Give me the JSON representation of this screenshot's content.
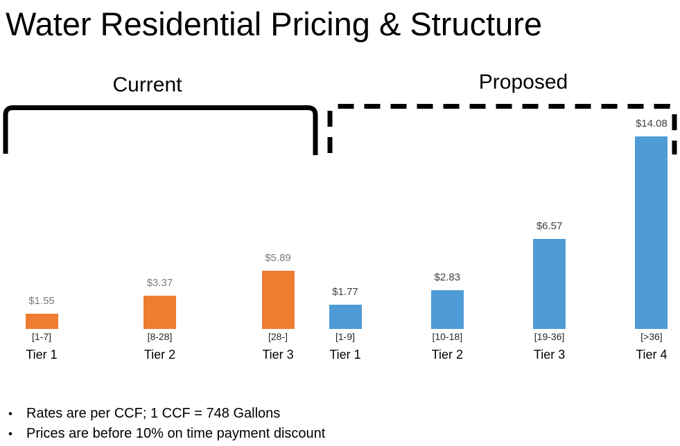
{
  "title": "Water Residential Pricing & Structure",
  "notes": {
    "bullet": "•",
    "items": [
      "Rates are per CCF; 1 CCF = 748 Gallons",
      "Prices are before 10% on time payment discount"
    ]
  },
  "colors": {
    "current_bar": "#ED7D31",
    "proposed_bar": "#4F9BD5",
    "current_value_label": "#7a7a7a",
    "proposed_value_label": "#404040",
    "bracket": "#000000",
    "text": "#000000"
  },
  "chart_data": {
    "type": "bar",
    "title": "Water Residential Pricing & Structure",
    "layout": {
      "baseline": "all bars share one bottom baseline",
      "grid": false,
      "axes_shown": false,
      "value_labels_position": "above bars",
      "category_labels_position": "below bars"
    },
    "charts": [
      {
        "name": "Current",
        "bar_color": "#ED7D31",
        "bracket_style": "solid",
        "categories": [
          "Tier 1",
          "Tier 2",
          "Tier 3"
        ],
        "ranges": [
          "[1-7]",
          "[8-28]",
          "[28-]"
        ],
        "values": [
          1.55,
          3.37,
          5.89
        ],
        "value_labels": [
          "$1.55",
          "$3.37",
          "$5.89"
        ]
      },
      {
        "name": "Proposed",
        "bar_color": "#4F9BD5",
        "bracket_style": "dashed",
        "categories": [
          "Tier 1",
          "Tier 2",
          "Tier 3",
          "Tier 4"
        ],
        "ranges": [
          "[1-9]",
          "[10-18]",
          "[19-36]",
          "[>36]"
        ],
        "values": [
          1.77,
          2.83,
          6.57,
          14.08
        ],
        "value_labels": [
          "$1.77",
          "$2.83",
          "$6.57",
          "$14.08"
        ]
      }
    ]
  }
}
